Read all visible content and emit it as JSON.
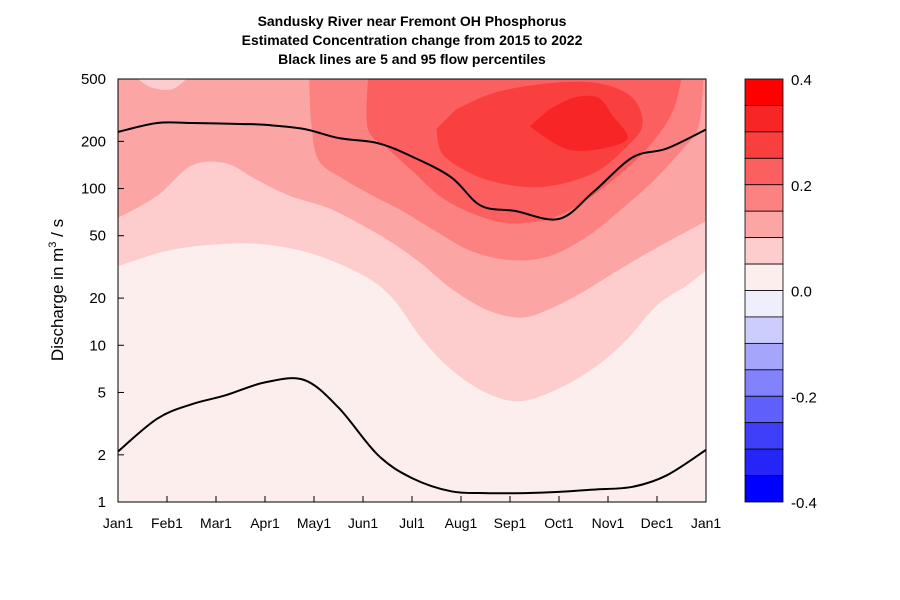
{
  "chart_data": {
    "type": "contour",
    "title_lines": [
      "Sandusky River near Fremont OH  Phosphorus",
      "Estimated Concentration change from 2015 to 2022",
      "Black lines are 5 and 95 flow percentiles"
    ],
    "ylabel_prefix": "Discharge in m",
    "ylabel_sup": "3",
    "ylabel_suffix": " / s",
    "y_scale": "log",
    "ylim": [
      1,
      500
    ],
    "y_ticks": [
      1,
      2,
      5,
      10,
      20,
      50,
      100,
      200,
      500
    ],
    "y_tick_labels": [
      "1",
      "2",
      "5",
      "10",
      "20",
      "50",
      "100",
      "200",
      "500"
    ],
    "x_ticks": [
      "Jan1",
      "Feb1",
      "Mar1",
      "Apr1",
      "May1",
      "Jun1",
      "Jul1",
      "Aug1",
      "Sep1",
      "Oct1",
      "Nov1",
      "Dec1",
      "Jan1"
    ],
    "x_tick_months": [
      0,
      1,
      2,
      3,
      4,
      5,
      6,
      7,
      8,
      9,
      10,
      11,
      12
    ],
    "percentile_95": [
      {
        "m": 0.0,
        "q": 230
      },
      {
        "m": 0.8,
        "q": 262
      },
      {
        "m": 1.5,
        "q": 262
      },
      {
        "m": 2.5,
        "q": 258
      },
      {
        "m": 3.0,
        "q": 255
      },
      {
        "m": 3.8,
        "q": 240
      },
      {
        "m": 4.5,
        "q": 210
      },
      {
        "m": 5.3,
        "q": 195
      },
      {
        "m": 6.0,
        "q": 160
      },
      {
        "m": 6.8,
        "q": 118
      },
      {
        "m": 7.4,
        "q": 78
      },
      {
        "m": 8.1,
        "q": 72
      },
      {
        "m": 9.0,
        "q": 64
      },
      {
        "m": 9.7,
        "q": 95
      },
      {
        "m": 10.5,
        "q": 158
      },
      {
        "m": 11.2,
        "q": 180
      },
      {
        "m": 12.0,
        "q": 238
      }
    ],
    "percentile_5": [
      {
        "m": 0.0,
        "q": 2.1
      },
      {
        "m": 0.8,
        "q": 3.4
      },
      {
        "m": 1.5,
        "q": 4.2
      },
      {
        "m": 2.2,
        "q": 4.8
      },
      {
        "m": 3.0,
        "q": 5.8
      },
      {
        "m": 3.8,
        "q": 6.0
      },
      {
        "m": 4.5,
        "q": 4.0
      },
      {
        "m": 5.3,
        "q": 2.0
      },
      {
        "m": 6.0,
        "q": 1.42
      },
      {
        "m": 6.8,
        "q": 1.17
      },
      {
        "m": 7.5,
        "q": 1.14
      },
      {
        "m": 8.3,
        "q": 1.14
      },
      {
        "m": 9.0,
        "q": 1.16
      },
      {
        "m": 9.7,
        "q": 1.2
      },
      {
        "m": 10.5,
        "q": 1.25
      },
      {
        "m": 11.2,
        "q": 1.48
      },
      {
        "m": 12.0,
        "q": 2.15
      }
    ],
    "contour_bands": [
      {
        "level": 0.05,
        "color": "#fdcdcd",
        "boundary": [
          {
            "m": 0,
            "q": 32
          },
          {
            "m": 1,
            "q": 40
          },
          {
            "m": 2,
            "q": 44
          },
          {
            "m": 3,
            "q": 44
          },
          {
            "m": 4,
            "q": 38
          },
          {
            "m": 5,
            "q": 28
          },
          {
            "m": 5.6,
            "q": 20
          },
          {
            "m": 6.2,
            "q": 11
          },
          {
            "m": 6.8,
            "q": 7
          },
          {
            "m": 7.5,
            "q": 5
          },
          {
            "m": 8.2,
            "q": 4.4
          },
          {
            "m": 9.0,
            "q": 5.3
          },
          {
            "m": 9.8,
            "q": 7.5
          },
          {
            "m": 10.4,
            "q": 11
          },
          {
            "m": 11.0,
            "q": 18
          },
          {
            "m": 11.6,
            "q": 24
          },
          {
            "m": 12,
            "q": 30
          }
        ]
      },
      {
        "level": 0.1,
        "color": "#fca5a5",
        "boundary": [
          {
            "m": 0,
            "q": 65
          },
          {
            "m": 0.8,
            "q": 90
          },
          {
            "m": 1.5,
            "q": 140
          },
          {
            "m": 2.2,
            "q": 145
          },
          {
            "m": 2.8,
            "q": 115
          },
          {
            "m": 3.5,
            "q": 90
          },
          {
            "m": 4.3,
            "q": 75
          },
          {
            "m": 5.0,
            "q": 58
          },
          {
            "m": 5.6,
            "q": 45
          },
          {
            "m": 6.2,
            "q": 33
          },
          {
            "m": 6.8,
            "q": 23
          },
          {
            "m": 7.5,
            "q": 17
          },
          {
            "m": 8.2,
            "q": 15
          },
          {
            "m": 8.8,
            "q": 17
          },
          {
            "m": 9.5,
            "q": 22
          },
          {
            "m": 10.2,
            "q": 30
          },
          {
            "m": 11.0,
            "q": 42
          },
          {
            "m": 12,
            "q": 62
          }
        ]
      },
      {
        "level": 0.15,
        "color": "#fc8282",
        "boundary": [
          {
            "m": 3.9,
            "q": 500
          },
          {
            "m": 3.95,
            "q": 250
          },
          {
            "m": 4.1,
            "q": 150
          },
          {
            "m": 4.6,
            "q": 115
          },
          {
            "m": 5.2,
            "q": 90
          },
          {
            "m": 5.8,
            "q": 72
          },
          {
            "m": 6.5,
            "q": 53
          },
          {
            "m": 7.2,
            "q": 40
          },
          {
            "m": 8.0,
            "q": 35
          },
          {
            "m": 8.8,
            "q": 37
          },
          {
            "m": 9.6,
            "q": 50
          },
          {
            "m": 10.3,
            "q": 75
          },
          {
            "m": 10.9,
            "q": 110
          },
          {
            "m": 11.5,
            "q": 175
          },
          {
            "m": 11.85,
            "q": 250
          },
          {
            "m": 11.95,
            "q": 500
          }
        ]
      },
      {
        "level": 0.2,
        "color": "#fb5f5f",
        "boundary": [
          {
            "m": 5.1,
            "q": 500
          },
          {
            "m": 5.1,
            "q": 240
          },
          {
            "m": 5.5,
            "q": 180
          },
          {
            "m": 6.0,
            "q": 130
          },
          {
            "m": 6.6,
            "q": 88
          },
          {
            "m": 7.3,
            "q": 68
          },
          {
            "m": 8.0,
            "q": 60
          },
          {
            "m": 8.8,
            "q": 64
          },
          {
            "m": 9.5,
            "q": 82
          },
          {
            "m": 10.2,
            "q": 120
          },
          {
            "m": 10.8,
            "q": 180
          },
          {
            "m": 11.3,
            "q": 300
          },
          {
            "m": 11.5,
            "q": 500
          }
        ]
      },
      {
        "level": 0.25,
        "color": "#fa3f3f",
        "boundary": [
          {
            "m": 6.5,
            "q": 240
          },
          {
            "m": 6.6,
            "q": 170
          },
          {
            "m": 7.0,
            "q": 135
          },
          {
            "m": 7.6,
            "q": 112
          },
          {
            "m": 8.4,
            "q": 102
          },
          {
            "m": 9.1,
            "q": 108
          },
          {
            "m": 9.8,
            "q": 130
          },
          {
            "m": 10.3,
            "q": 175
          },
          {
            "m": 10.7,
            "q": 250
          },
          {
            "m": 10.5,
            "q": 380
          },
          {
            "m": 9.8,
            "q": 470
          },
          {
            "m": 8.8,
            "q": 470
          },
          {
            "m": 7.7,
            "q": 410
          },
          {
            "m": 6.9,
            "q": 320
          }
        ]
      },
      {
        "level": 0.3,
        "color": "#f72525",
        "boundary": [
          {
            "m": 8.4,
            "q": 250
          },
          {
            "m": 8.9,
            "q": 195
          },
          {
            "m": 9.3,
            "q": 175
          },
          {
            "m": 9.9,
            "q": 180
          },
          {
            "m": 10.4,
            "q": 210
          },
          {
            "m": 10.1,
            "q": 290
          },
          {
            "m": 9.8,
            "q": 380
          },
          {
            "m": 9.3,
            "q": 380
          },
          {
            "m": 8.8,
            "q": 320
          }
        ]
      }
    ],
    "upper_left_regions": [
      {
        "color": "#fca5a5",
        "boundary": [
          {
            "m": 0,
            "q": 500
          },
          {
            "m": 0,
            "q": 170
          },
          {
            "m": 0.5,
            "q": 230
          },
          {
            "m": 1.2,
            "q": 330
          },
          {
            "m": 1.6,
            "q": 480
          },
          {
            "m": 1.7,
            "q": 500
          }
        ]
      },
      {
        "color": "#fca5a5",
        "boundary": [
          {
            "m": 2.1,
            "q": 500
          },
          {
            "m": 2.2,
            "q": 330
          },
          {
            "m": 2.6,
            "q": 230
          },
          {
            "m": 3.2,
            "q": 300
          },
          {
            "m": 3.7,
            "q": 430
          },
          {
            "m": 3.9,
            "q": 500
          }
        ]
      },
      {
        "color": "#fdcdcd",
        "boundary": [
          {
            "m": 0.4,
            "q": 500
          },
          {
            "m": 0.7,
            "q": 440
          },
          {
            "m": 1.1,
            "q": 430
          },
          {
            "m": 1.4,
            "q": 500
          }
        ]
      }
    ],
    "background_color": "#fdeeee",
    "colorbar": {
      "levels": [
        0.4,
        0.35,
        0.3,
        0.25,
        0.2,
        0.15,
        0.1,
        0.05,
        0.0,
        -0.05,
        -0.1,
        -0.15,
        -0.2,
        -0.25,
        -0.3,
        -0.35,
        -0.4
      ],
      "colors": [
        "#ff0000",
        "#f72525",
        "#fa3f3f",
        "#fb5f5f",
        "#fc8282",
        "#fca5a5",
        "#fdcdcd",
        "#fdeeee",
        "#eeeefd",
        "#cdcdfd",
        "#a5a5fc",
        "#8282fc",
        "#5f5ffb",
        "#3f3ffa",
        "#2525f7",
        "#0000ff"
      ],
      "tick_values": [
        0.4,
        0.2,
        0.0,
        -0.2,
        -0.4
      ],
      "tick_labels": [
        "0.4",
        "0.2",
        "0.0",
        "-0.2",
        "-0.4"
      ]
    }
  }
}
